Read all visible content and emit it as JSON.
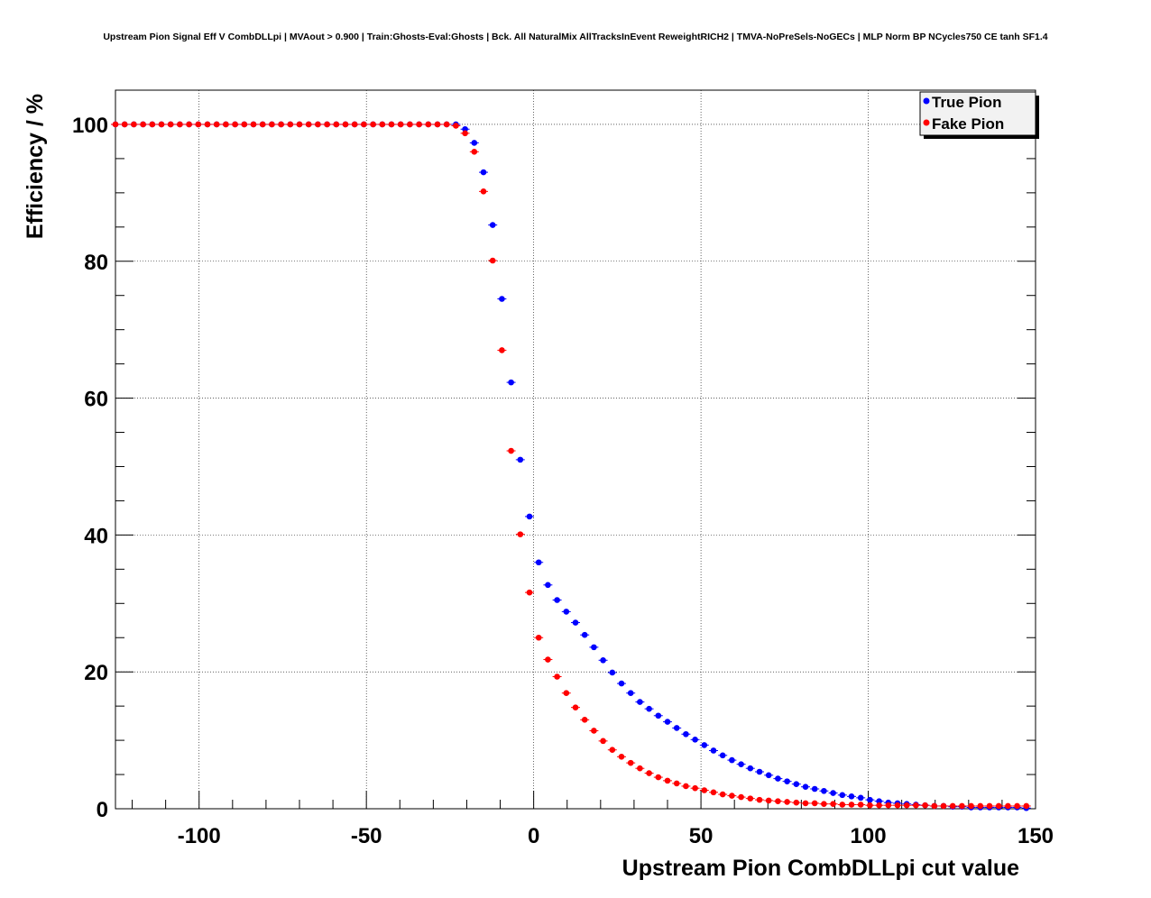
{
  "chart_data": {
    "type": "scatter",
    "title": "Upstream Pion Signal Eff V CombDLLpi | MVAout > 0.900 | Train:Ghosts-Eval:Ghosts | Bck. All NaturalMix AllTracksInEvent ReweightRICH2 | TMVA-NoPreSels-NoGECs | MLP Norm BP NCycles750 CE tanh SF1.4",
    "xlabel": "Upstream Pion CombDLLpi cut value",
    "ylabel": "Efficiency / %",
    "xlim": [
      -125,
      150
    ],
    "ylim": [
      0,
      105
    ],
    "x_ticks": [
      -100,
      -50,
      0,
      50,
      100,
      150
    ],
    "x_tick_labels": [
      "-100",
      "-50",
      "0",
      "50",
      "100",
      "150"
    ],
    "y_ticks": [
      0,
      20,
      40,
      60,
      80,
      100
    ],
    "y_tick_labels": [
      "0",
      "20",
      "40",
      "60",
      "80",
      "100"
    ],
    "grid": true,
    "legend_position": "top-right",
    "colors": {
      "True Pion": "#0000ff",
      "Fake Pion": "#ff0000"
    },
    "series": [
      {
        "name": "True Pion",
        "x": [
          -125,
          -122.25,
          -119.5,
          -116.75,
          -114,
          -111.25,
          -108.5,
          -105.75,
          -103,
          -100.25,
          -97.5,
          -94.75,
          -92,
          -89.25,
          -86.5,
          -83.75,
          -81,
          -78.25,
          -75.5,
          -72.75,
          -70,
          -67.25,
          -64.5,
          -61.75,
          -59,
          -56.25,
          -53.5,
          -50.75,
          -48,
          -45.25,
          -42.5,
          -39.75,
          -37,
          -34.25,
          -31.5,
          -28.75,
          -26,
          -23.25,
          -20.5,
          -17.75,
          -15,
          -12.25,
          -9.5,
          -6.75,
          -4,
          -1.25,
          1.5,
          4.25,
          7,
          9.75,
          12.5,
          15.25,
          18,
          20.75,
          23.5,
          26.25,
          29,
          31.75,
          34.5,
          37.25,
          40,
          42.75,
          45.5,
          48.25,
          51,
          53.75,
          56.5,
          59.25,
          62,
          64.75,
          67.5,
          70.25,
          73,
          75.75,
          78.5,
          81.25,
          84,
          86.75,
          89.5,
          92.25,
          95,
          97.75,
          100.5,
          103.25,
          106,
          108.75,
          111.5,
          114.25,
          117,
          119.75,
          122.5,
          125.25,
          128,
          130.75,
          133.5,
          136.25,
          139,
          141.75,
          144.5,
          147.25
        ],
        "values": [
          100,
          100,
          100,
          100,
          100,
          100,
          100,
          100,
          100,
          100,
          100,
          100,
          100,
          100,
          100,
          100,
          100,
          100,
          100,
          100,
          100,
          100,
          100,
          100,
          100,
          100,
          100,
          100,
          100,
          100,
          100,
          100,
          100,
          100,
          100,
          100,
          100,
          100,
          99.3,
          97.3,
          93,
          85.3,
          74.5,
          62.3,
          51,
          42.7,
          36,
          32.7,
          30.5,
          28.8,
          27.2,
          25.4,
          23.6,
          21.7,
          19.9,
          18.3,
          16.9,
          15.6,
          14.6,
          13.6,
          12.7,
          11.8,
          10.9,
          10.1,
          9.3,
          8.5,
          7.8,
          7.1,
          6.5,
          5.9,
          5.4,
          4.9,
          4.4,
          4,
          3.6,
          3.2,
          2.9,
          2.6,
          2.3,
          2,
          1.8,
          1.6,
          1.3,
          1.1,
          0.9,
          0.8,
          0.7,
          0.6,
          0.5,
          0.4,
          0.4,
          0.3,
          0.3,
          0.2,
          0.2,
          0.2,
          0.2,
          0.2,
          0.2,
          0.1
        ]
      },
      {
        "name": "Fake Pion",
        "x": [
          -125,
          -122.25,
          -119.5,
          -116.75,
          -114,
          -111.25,
          -108.5,
          -105.75,
          -103,
          -100.25,
          -97.5,
          -94.75,
          -92,
          -89.25,
          -86.5,
          -83.75,
          -81,
          -78.25,
          -75.5,
          -72.75,
          -70,
          -67.25,
          -64.5,
          -61.75,
          -59,
          -56.25,
          -53.5,
          -50.75,
          -48,
          -45.25,
          -42.5,
          -39.75,
          -37,
          -34.25,
          -31.5,
          -28.75,
          -26,
          -23.25,
          -20.5,
          -17.75,
          -15,
          -12.25,
          -9.5,
          -6.75,
          -4,
          -1.25,
          1.5,
          4.25,
          7,
          9.75,
          12.5,
          15.25,
          18,
          20.75,
          23.5,
          26.25,
          29,
          31.75,
          34.5,
          37.25,
          40,
          42.75,
          45.5,
          48.25,
          51,
          53.75,
          56.5,
          59.25,
          62,
          64.75,
          67.5,
          70.25,
          73,
          75.75,
          78.5,
          81.25,
          84,
          86.75,
          89.5,
          92.25,
          95,
          97.75,
          100.5,
          103.25,
          106,
          108.75,
          111.5,
          114.25,
          117,
          119.75,
          122.5,
          125.25,
          128,
          130.75,
          133.5,
          136.25,
          139,
          141.75,
          144.5,
          147.25
        ],
        "values": [
          100,
          100,
          100,
          100,
          100,
          100,
          100,
          100,
          100,
          100,
          100,
          100,
          100,
          100,
          100,
          100,
          100,
          100,
          100,
          100,
          100,
          100,
          100,
          100,
          100,
          100,
          100,
          100,
          100,
          100,
          100,
          100,
          100,
          100,
          100,
          100,
          100,
          99.8,
          98.7,
          96,
          90.2,
          80.1,
          67,
          52.3,
          40.1,
          31.6,
          25,
          21.8,
          19.3,
          16.9,
          14.8,
          13,
          11.4,
          9.9,
          8.6,
          7.6,
          6.7,
          5.9,
          5.2,
          4.6,
          4.1,
          3.7,
          3.3,
          3,
          2.7,
          2.4,
          2.1,
          1.9,
          1.7,
          1.5,
          1.3,
          1.2,
          1.1,
          1,
          0.9,
          0.8,
          0.8,
          0.7,
          0.7,
          0.6,
          0.6,
          0.6,
          0.5,
          0.5,
          0.5,
          0.5,
          0.5,
          0.5,
          0.5,
          0.4,
          0.4,
          0.4,
          0.4,
          0.4,
          0.4,
          0.4,
          0.4,
          0.4,
          0.4,
          0.4
        ]
      }
    ]
  }
}
